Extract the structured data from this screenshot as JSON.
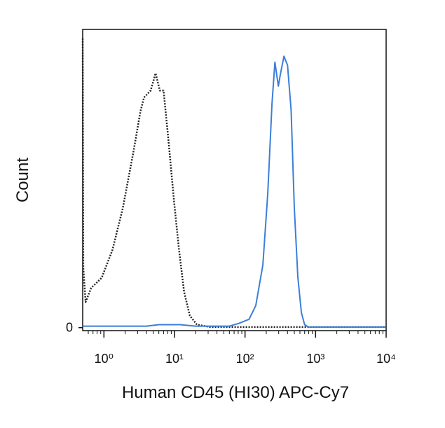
{
  "chart_data": {
    "type": "line",
    "x_label": "Human CD45 (HI30) APC-Cy7",
    "y_label": "Count",
    "xscale": "log",
    "xlim": [
      0.5,
      10000
    ],
    "ylim": [
      -1,
      100
    ],
    "xticks": [
      {
        "value": 1,
        "label": "10⁰"
      },
      {
        "value": 10,
        "label": "10¹"
      },
      {
        "value": 100,
        "label": "10²"
      },
      {
        "value": 1000,
        "label": "10³"
      },
      {
        "value": 10000,
        "label": "10⁴"
      }
    ],
    "minor_xticks": [
      0.6,
      0.7,
      0.8,
      0.9,
      2,
      3,
      4,
      5,
      6,
      7,
      8,
      9,
      20,
      30,
      40,
      50,
      60,
      70,
      80,
      90,
      200,
      300,
      400,
      500,
      600,
      700,
      800,
      900,
      2000,
      3000,
      4000,
      5000,
      6000,
      7000,
      8000,
      9000
    ],
    "yticks": [
      0
    ],
    "series": [
      {
        "color": "#222222",
        "dash": "dotted",
        "x": [
          0.5,
          0.51,
          0.55,
          0.66,
          0.93,
          1.32,
          1.85,
          2.6,
          3.3,
          3.7,
          4.6,
          5.4,
          6.2,
          7.0,
          8.2,
          9.9,
          11.6,
          13.7,
          16.5,
          20.8,
          32.3,
          317,
          9800
        ],
        "values": [
          97,
          20,
          8.6,
          13.3,
          16.7,
          26,
          40,
          58.6,
          72.6,
          77.2,
          79.5,
          85.3,
          79.5,
          79.5,
          63,
          42,
          26,
          12,
          4,
          1,
          0.2,
          0.2,
          0.2
        ]
      },
      {
        "color": "#3a7fd8",
        "dash": "solid",
        "x": [
          0.5,
          4,
          6,
          12,
          20,
          60,
          81,
          114,
          142,
          179,
          210,
          241,
          265,
          297,
          317,
          356,
          400,
          450,
          500,
          560,
          630,
          700,
          790,
          9800
        ],
        "values": [
          0.5,
          0.5,
          1,
          1,
          0.5,
          0.5,
          1.4,
          2.8,
          7.4,
          21,
          45,
          75,
          89,
          81,
          85,
          91,
          88,
          73,
          40,
          17,
          5,
          1,
          0.2,
          0.2
        ]
      }
    ]
  }
}
